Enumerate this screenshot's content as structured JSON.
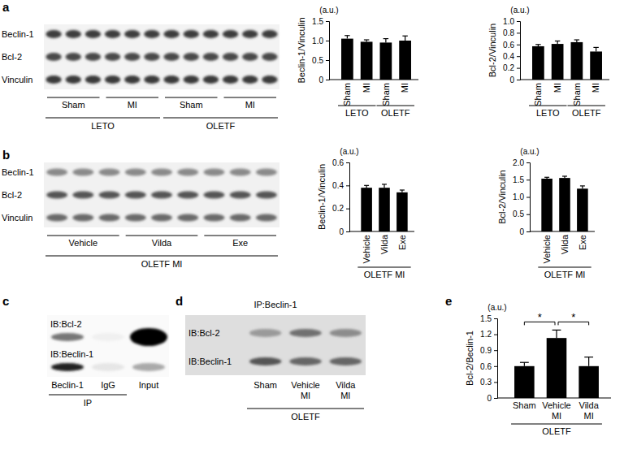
{
  "chart_data": [
    {
      "type": "bar",
      "unit_label": "(a.u.)",
      "y_label": "Beclin-1/Vinculin",
      "categories": [
        "Sham",
        "MI",
        "Sham",
        "MI"
      ],
      "groups": [
        "LETO",
        "OLETF"
      ],
      "values": [
        1.05,
        0.97,
        0.95,
        1.0
      ],
      "errors": [
        0.08,
        0.05,
        0.1,
        0.12
      ],
      "color": "#000000",
      "ylim": [
        0,
        1.5
      ],
      "yticks": [
        0,
        0.5,
        {
          "value": 1,
          "label": "1.0"
        },
        1.5
      ]
    },
    {
      "type": "bar",
      "unit_label": "(a.u.)",
      "y_label": "Bcl-2/Vinculin",
      "categories": [
        "Sham",
        "MI",
        "Sham",
        "MI"
      ],
      "groups": [
        "LETO",
        "OLETF"
      ],
      "values": [
        0.57,
        0.61,
        0.64,
        0.48
      ],
      "errors": [
        0.03,
        0.05,
        0.04,
        0.07
      ],
      "color": "#000000",
      "ylim": [
        0,
        1
      ],
      "yticks": [
        0,
        0.2,
        0.4,
        0.6,
        0.8,
        {
          "value": 1,
          "label": "1.0"
        }
      ]
    },
    {
      "type": "bar",
      "unit_label": "(a.u.)",
      "y_label": "Beclin-1/Vinculin",
      "categories": [
        "Vehicle",
        "Vilda",
        "Exe"
      ],
      "groups": [
        "OLETF MI"
      ],
      "values": [
        0.38,
        0.38,
        0.34
      ],
      "errors": [
        0.02,
        0.03,
        0.02
      ],
      "color": "#000000",
      "ylim": [
        0,
        0.6
      ],
      "yticks": [
        0,
        0.2,
        0.4,
        0.6
      ]
    },
    {
      "type": "bar",
      "unit_label": "(a.u.)",
      "y_label": "Bcl-2/Vinculin",
      "categories": [
        "Vehicle",
        "Vilda",
        "Exe"
      ],
      "groups": [
        "OLETF MI"
      ],
      "values": [
        1.53,
        1.55,
        1.24
      ],
      "errors": [
        0.04,
        0.05,
        0.08
      ],
      "color": "#000000",
      "ylim": [
        0,
        2
      ],
      "yticks": [
        0,
        0.5,
        {
          "value": 1,
          "label": "1.0"
        },
        1.5,
        {
          "value": 2,
          "label": "2.0"
        }
      ]
    },
    {
      "type": "bar",
      "unit_label": "(a.u.)",
      "y_label": "Bcl-2/Beclin-1",
      "categories": [
        "Sham",
        "Vehicle MI",
        "Vilda MI"
      ],
      "groups": [
        "OLETF"
      ],
      "values": [
        0.6,
        1.13,
        0.6
      ],
      "errors": [
        0.07,
        0.15,
        0.17
      ],
      "color": "#000000",
      "ylim": [
        0,
        1.5
      ],
      "yticks": [
        0,
        0.3,
        0.6,
        0.9,
        1.2,
        1.5
      ],
      "annotations": [
        {
          "text": "*",
          "between": [
            "Sham",
            "Vehicle MI"
          ]
        },
        {
          "text": "*",
          "between": [
            "Vehicle MI",
            "Vilda MI"
          ]
        }
      ]
    }
  ],
  "panel_labels": [
    "a",
    "b",
    "c",
    "d",
    "e"
  ],
  "blots": [
    {
      "rows": [
        "Beclin-1",
        "Bcl-2",
        "Vinculin"
      ],
      "lane_labels": [
        "Sham",
        "MI",
        "Sham",
        "MI"
      ],
      "group_labels": [
        "LETO",
        "OLETF"
      ]
    },
    {
      "rows": [
        "Beclin-1",
        "Bcl-2",
        "Vinculin"
      ],
      "lane_labels": [
        "Vehicle",
        "Vilda",
        "Exe"
      ],
      "group_labels": [
        "OLETF MI"
      ]
    },
    {
      "rows": [
        "IB:Bcl-2",
        "IB:Beclin-1"
      ],
      "lane_labels": [
        "Beclin-1",
        "IgG",
        "Input"
      ],
      "group_labels": [
        "IP"
      ]
    },
    {
      "title": "IP:Beclin-1",
      "rows": [
        "IB:Bcl-2",
        "IB:Beclin-1"
      ],
      "lane_labels": [
        "Sham",
        "Vehicle MI",
        "Vilda MI"
      ],
      "group_labels": [
        "OLETF"
      ]
    }
  ]
}
